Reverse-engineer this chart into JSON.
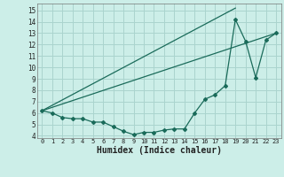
{
  "xlabel": "Humidex (Indice chaleur)",
  "background_color": "#cceee8",
  "grid_color": "#aad4ce",
  "line_color": "#1a6b5a",
  "xlim": [
    -0.5,
    23.5
  ],
  "ylim": [
    3.8,
    15.6
  ],
  "yticks": [
    4,
    5,
    6,
    7,
    8,
    9,
    10,
    11,
    12,
    13,
    14,
    15
  ],
  "xticks": [
    0,
    1,
    2,
    3,
    4,
    5,
    6,
    7,
    8,
    9,
    10,
    11,
    12,
    13,
    14,
    15,
    16,
    17,
    18,
    19,
    20,
    21,
    22,
    23
  ],
  "line1_x": [
    0,
    1,
    2,
    3,
    4,
    5,
    6,
    7,
    8,
    9,
    10,
    11,
    12,
    13,
    14,
    15,
    16,
    17,
    18,
    19,
    20,
    21,
    22,
    23
  ],
  "line1_y": [
    6.2,
    6.0,
    5.6,
    5.5,
    5.5,
    5.2,
    5.2,
    4.8,
    4.4,
    4.1,
    4.3,
    4.3,
    4.5,
    4.6,
    4.6,
    6.0,
    7.2,
    7.6,
    8.4,
    14.2,
    12.3,
    9.1,
    12.4,
    13.0
  ],
  "line2_x": [
    0,
    23
  ],
  "line2_y": [
    6.2,
    13.0
  ],
  "line3_x": [
    0,
    19
  ],
  "line3_y": [
    6.2,
    15.2
  ]
}
